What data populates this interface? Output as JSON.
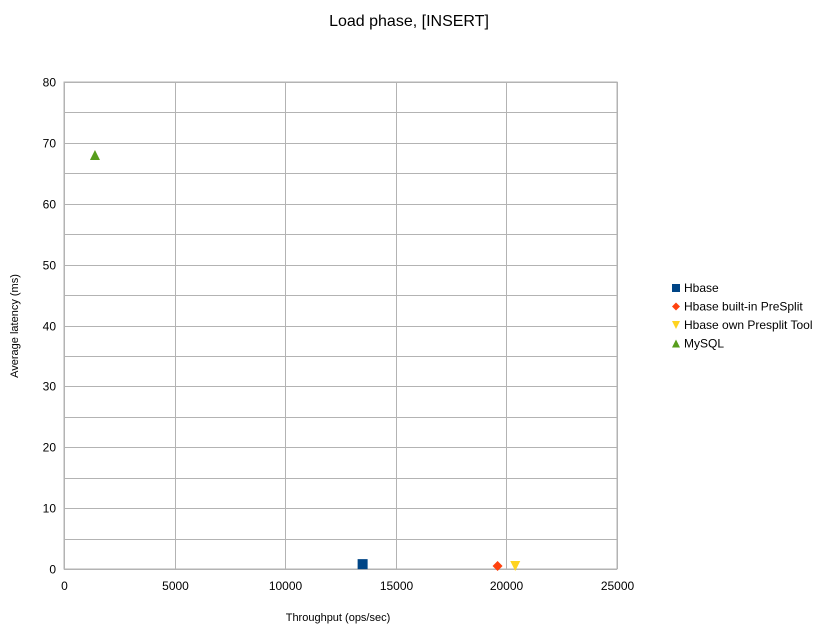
{
  "chart_data": {
    "type": "scatter",
    "title": "Load phase, [INSERT]",
    "xlabel": "Throughput (ops/sec)",
    "ylabel": "Average latency (ms)",
    "xlim": [
      0,
      25000
    ],
    "ylim": [
      0,
      80
    ],
    "xticks": [
      0,
      5000,
      10000,
      15000,
      20000,
      25000
    ],
    "yticks": [
      0,
      10,
      20,
      30,
      40,
      50,
      60,
      70,
      80
    ],
    "grid": true,
    "legend_position": "right",
    "series": [
      {
        "name": "Hbase",
        "marker": "square",
        "color": "#004586",
        "points": [
          {
            "x": 13500,
            "y": 0.8
          }
        ]
      },
      {
        "name": "Hbase built-in PreSplit",
        "marker": "diamond",
        "color": "#ff420e",
        "points": [
          {
            "x": 19600,
            "y": 0.5
          }
        ]
      },
      {
        "name": "Hbase own Presplit Tool",
        "marker": "triangle-down",
        "color": "#ffd320",
        "points": [
          {
            "x": 20400,
            "y": 0.5
          }
        ]
      },
      {
        "name": "MySQL",
        "marker": "triangle-up",
        "color": "#579d1c",
        "points": [
          {
            "x": 1400,
            "y": 68
          }
        ]
      }
    ]
  }
}
